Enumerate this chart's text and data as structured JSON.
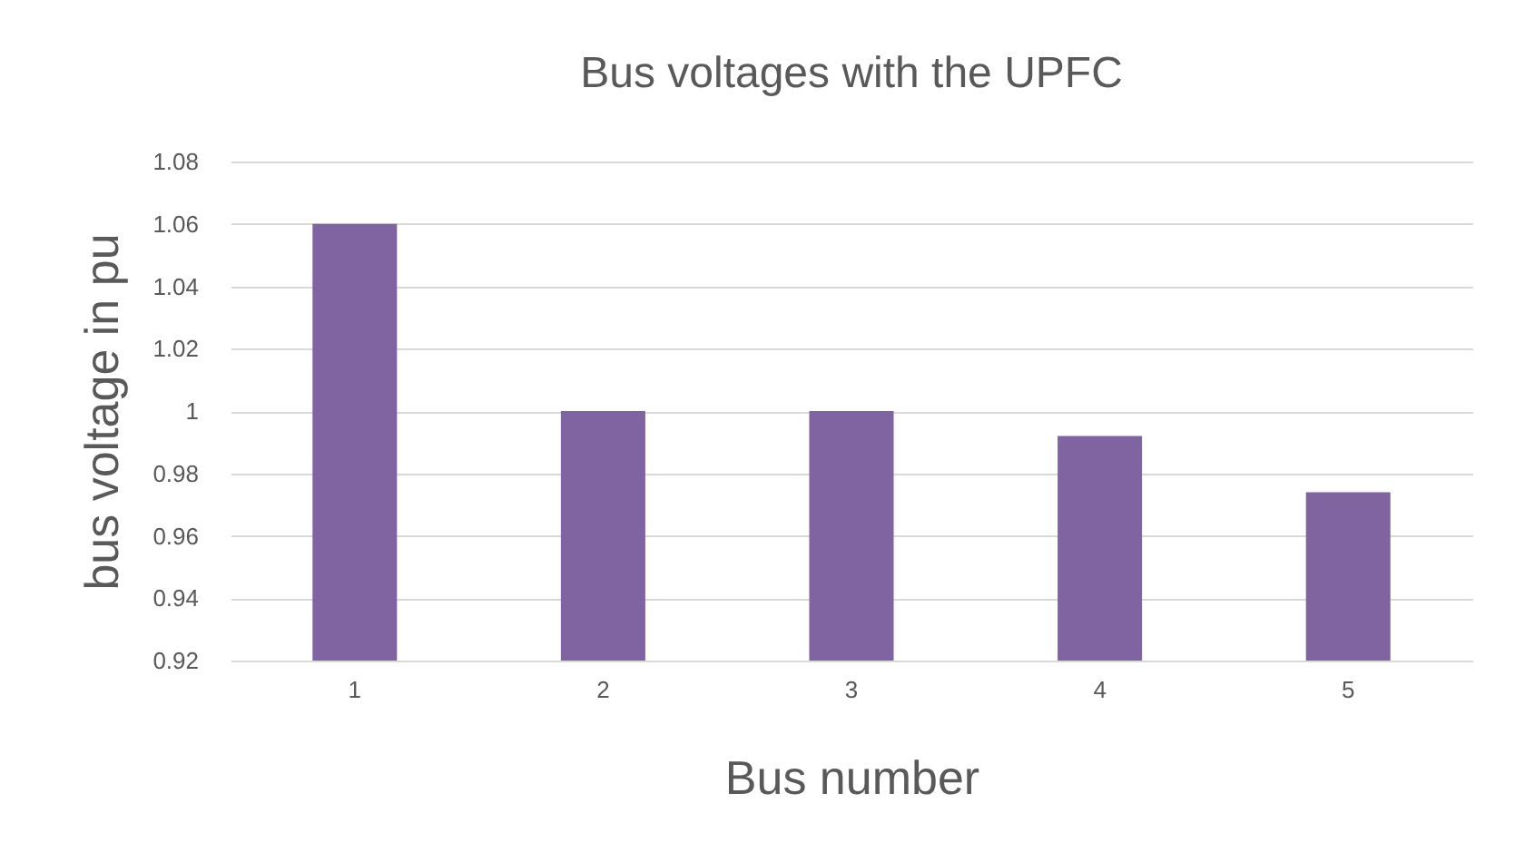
{
  "chart_data": {
    "type": "bar",
    "title": "Bus voltages with the UPFC",
    "xlabel": "Bus number",
    "ylabel": "bus voltage in pu",
    "categories": [
      "1",
      "2",
      "3",
      "4",
      "5"
    ],
    "values": [
      1.06,
      1.0,
      1.0,
      0.992,
      0.974
    ],
    "color": "#8064a2",
    "ylim": [
      0.92,
      1.08
    ],
    "yticks": [
      0.92,
      0.94,
      0.96,
      0.98,
      1,
      1.02,
      1.04,
      1.06,
      1.08
    ],
    "grid": "y"
  }
}
